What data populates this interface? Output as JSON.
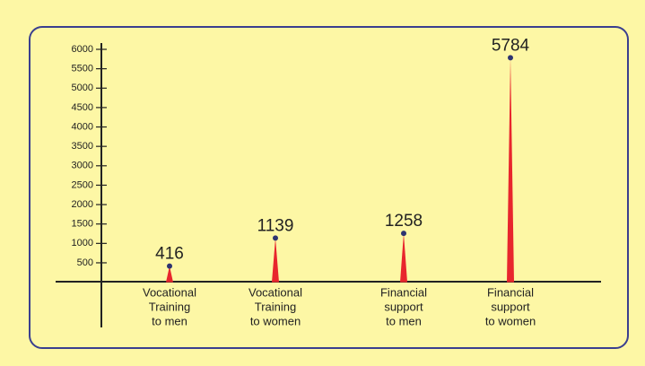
{
  "chart_data": {
    "type": "spike",
    "categories": [
      [
        "Vocational",
        "Training",
        "to men"
      ],
      [
        "Vocational",
        "Training",
        "to women"
      ],
      [
        "Financial",
        "support",
        "to men"
      ],
      [
        "Financial",
        "support",
        "to women"
      ]
    ],
    "values": [
      416,
      1139,
      1258,
      5784
    ],
    "color": "#e8262d",
    "dot_color": "#2e3470",
    "ylim": [
      0,
      6000
    ],
    "yticks": [
      500,
      1000,
      1500,
      2000,
      2500,
      3000,
      3500,
      4000,
      4500,
      5000,
      5500,
      6000
    ]
  }
}
